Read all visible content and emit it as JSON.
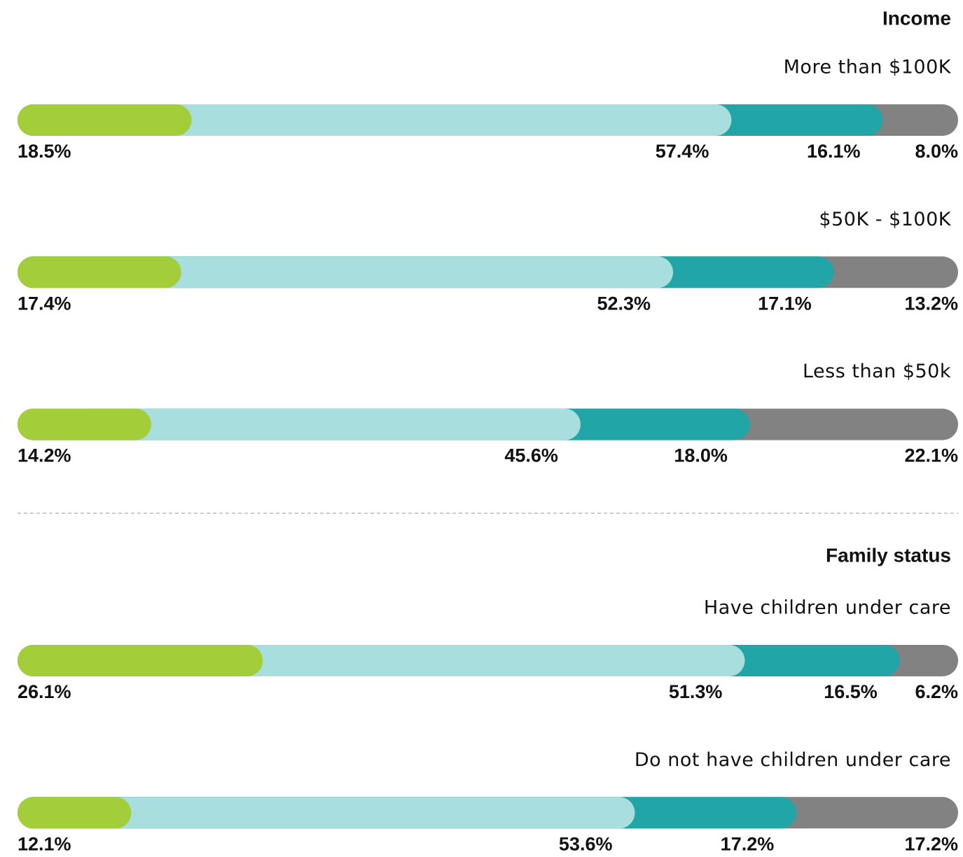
{
  "chart_data": [
    {
      "type": "stacked_bar",
      "title": "Income",
      "categories": [
        "More than $100K",
        "$50K - $100K",
        "Less than $50k"
      ],
      "series": [
        {
          "color": "#a3ce3a",
          "values": [
            18.5,
            17.4,
            14.2
          ],
          "value_labels": [
            "18.5%",
            "17.4%",
            "14.2%"
          ]
        },
        {
          "color": "#a8dedd",
          "values": [
            57.4,
            52.3,
            45.6
          ],
          "value_labels": [
            "57.4%",
            "52.3%",
            "45.6%"
          ]
        },
        {
          "color": "#21a5a6",
          "values": [
            16.1,
            17.1,
            18.0
          ],
          "value_labels": [
            "16.1%",
            "17.1%",
            "18.0%"
          ]
        },
        {
          "color": "#828282",
          "values": [
            8.0,
            13.2,
            22.1
          ],
          "value_labels": [
            "8.0%",
            "13.2%",
            "22.1%"
          ]
        }
      ]
    },
    {
      "type": "stacked_bar",
      "title": "Family status",
      "categories": [
        "Have children under care",
        "Do not have children under care"
      ],
      "series": [
        {
          "color": "#a3ce3a",
          "values": [
            26.1,
            12.1
          ],
          "value_labels": [
            "26.1%",
            "12.1%"
          ]
        },
        {
          "color": "#a8dedd",
          "values": [
            51.3,
            53.6
          ],
          "value_labels": [
            "51.3%",
            "53.6%"
          ]
        },
        {
          "color": "#21a5a6",
          "values": [
            16.5,
            17.2
          ],
          "value_labels": [
            "16.5%",
            "17.2%"
          ]
        },
        {
          "color": "#828282",
          "values": [
            6.2,
            17.2
          ],
          "value_labels": [
            "6.2%",
            "17.2%"
          ]
        }
      ]
    }
  ]
}
